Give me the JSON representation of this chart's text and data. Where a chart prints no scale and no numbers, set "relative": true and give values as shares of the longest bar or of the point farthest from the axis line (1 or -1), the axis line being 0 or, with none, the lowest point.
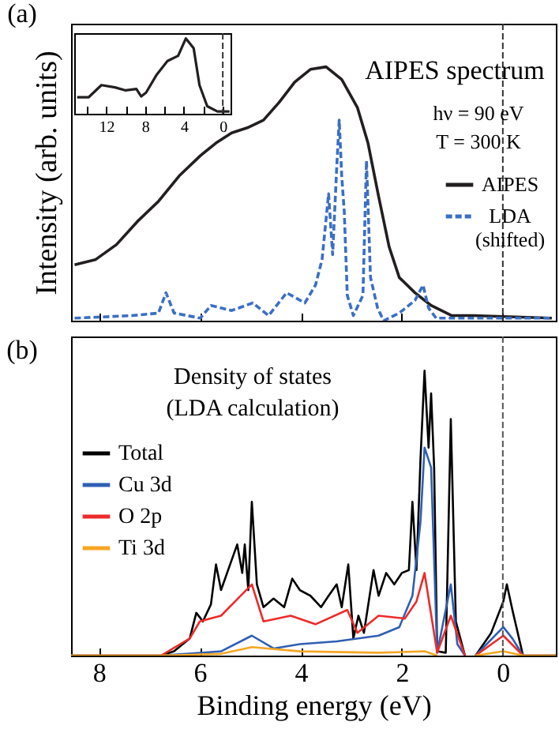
{
  "chart_data": [
    {
      "type": "line",
      "relative": true,
      "ylabel": "Intensity (arb. units)",
      "xlim": [
        8.55,
        -1.05
      ],
      "xticks": [
        8,
        6,
        4,
        2,
        0
      ],
      "tick_labels": false,
      "legend": "right",
      "annotations": [
        "(a)",
        "AIPES spectrum",
        "hν = 90 eV",
        "T = 300 K"
      ],
      "ref_lines": [
        {
          "axis": "x",
          "value": 0,
          "color": "#333333",
          "line_style": "dashed"
        }
      ],
      "series": [
        {
          "name": "AIPES",
          "color": "#231f20",
          "x": [
            8.48,
            8.07,
            7.65,
            7.24,
            6.82,
            6.41,
            5.99,
            5.68,
            5.37,
            5.06,
            4.74,
            4.43,
            4.12,
            3.81,
            3.5,
            3.19,
            2.88,
            2.67,
            2.46,
            2.25,
            2.05,
            1.74,
            1.42,
            1.01,
            0.59,
            -0.97
          ],
          "values": [
            0.22,
            0.24,
            0.3,
            0.39,
            0.47,
            0.57,
            0.65,
            0.7,
            0.74,
            0.76,
            0.79,
            0.86,
            0.94,
            0.99,
            1.0,
            0.95,
            0.84,
            0.7,
            0.49,
            0.29,
            0.17,
            0.11,
            0.06,
            0.02,
            0.02,
            0.01
          ]
        },
        {
          "name": "LDA (shifted)",
          "color": "#3a6fc4",
          "line_style": "dashed",
          "x": [
            8.48,
            7.34,
            6.82,
            6.67,
            6.51,
            5.99,
            5.78,
            5.37,
            4.95,
            4.64,
            4.28,
            3.92,
            3.71,
            3.58,
            3.45,
            3.37,
            3.29,
            3.24,
            3.19,
            3.14,
            3.08,
            2.96,
            2.77,
            2.7,
            2.62,
            2.48,
            2.36,
            2.05,
            1.74,
            1.58,
            1.47,
            1.32,
            -0.71,
            -0.97
          ],
          "values": [
            0.01,
            0.02,
            0.03,
            0.11,
            0.03,
            0.01,
            0.06,
            0.04,
            0.07,
            0.02,
            0.11,
            0.07,
            0.14,
            0.24,
            0.5,
            0.26,
            0.6,
            0.79,
            0.57,
            0.43,
            0.1,
            0.02,
            0.1,
            0.63,
            0.17,
            0.05,
            0.0,
            0.03,
            0.08,
            0.14,
            0.05,
            0.01,
            0.01,
            0.01
          ]
        }
      ]
    },
    {
      "type": "line",
      "relative": true,
      "xlim": [
        15.3,
        -0.8
      ],
      "xticks": [
        {
          "value": 14,
          "label": null
        },
        12,
        {
          "value": 10,
          "label": null
        },
        8,
        {
          "value": 6,
          "label": null
        },
        4,
        {
          "value": 2,
          "label": null
        },
        0
      ],
      "ref_lines": [
        {
          "axis": "x",
          "value": 0,
          "color": "#333333",
          "line_style": "dashed"
        }
      ],
      "series": [
        {
          "color": "#231f20",
          "x": [
            15.0,
            13.8,
            12.5,
            11.1,
            10.0,
            8.9,
            8.4,
            7.9,
            6.8,
            5.7,
            4.6,
            3.8,
            3.0,
            2.4,
            1.6,
            0.55,
            -0.7
          ],
          "values": [
            0.22,
            0.22,
            0.38,
            0.35,
            0.31,
            0.33,
            0.23,
            0.28,
            0.52,
            0.7,
            0.77,
            1.0,
            0.87,
            0.38,
            0.1,
            0.03,
            0.03
          ]
        }
      ]
    },
    {
      "type": "line",
      "relative": true,
      "xlabel": "Binding energy (eV)",
      "xlim": [
        8.55,
        -1.05
      ],
      "xticks": [
        8,
        6,
        4,
        2,
        0
      ],
      "legend": "left",
      "annotations": [
        "(b)",
        "Density of states",
        "(LDA calculation)"
      ],
      "ref_lines": [
        {
          "axis": "x",
          "value": 0,
          "color": "#555555",
          "line_style": "dashed"
        }
      ],
      "series": [
        {
          "name": "Total",
          "color": "#000000",
          "x": [
            8.55,
            6.77,
            6.51,
            6.2,
            6.07,
            5.94,
            5.78,
            5.68,
            5.58,
            5.42,
            5.26,
            5.16,
            5.11,
            5.04,
            4.97,
            4.87,
            4.74,
            4.54,
            4.33,
            4.17,
            4.02,
            3.81,
            3.6,
            3.45,
            3.29,
            3.19,
            3.06,
            2.96,
            2.86,
            2.75,
            2.56,
            2.46,
            2.31,
            2.15,
            2.0,
            1.86,
            1.79,
            1.71,
            1.63,
            1.55,
            1.47,
            1.42,
            1.36,
            1.3,
            1.13,
            1.03,
            0.93,
            0.75,
            0.65,
            0.54,
            0.23,
            -0.01,
            -0.08,
            -0.19,
            -0.4,
            -1.05
          ],
          "values": [
            0,
            0,
            0.015,
            0.06,
            0.15,
            0.12,
            0.18,
            0.32,
            0.23,
            0.31,
            0.39,
            0.29,
            0.39,
            0.23,
            0.54,
            0.25,
            0.17,
            0.2,
            0.17,
            0.27,
            0.23,
            0.21,
            0.17,
            0.21,
            0.25,
            0.17,
            0.32,
            0.06,
            0.14,
            0.08,
            0.3,
            0.21,
            0.29,
            0.25,
            0.29,
            0.3,
            0.54,
            0.3,
            0.69,
            1.0,
            0.73,
            0.92,
            0.66,
            0.015,
            0.01,
            0.83,
            0.12,
            0,
            null,
            0,
            0.08,
            0.19,
            0.25,
            0.16,
            0,
            0
          ]
        },
        {
          "name": "Cu 3d",
          "color": "#2f5fb3",
          "x": [
            8.55,
            6.77,
            5.58,
            4.97,
            4.54,
            4.02,
            3.29,
            2.46,
            2.05,
            1.79,
            1.63,
            1.55,
            1.42,
            1.3,
            1.03,
            0.9,
            0.75,
            0.65,
            0.54,
            -0.01,
            -0.19,
            -0.4,
            -1.05
          ],
          "values": [
            0,
            0,
            0.015,
            0.07,
            0.025,
            0.04,
            0.05,
            0.07,
            0.1,
            0.21,
            0.47,
            0.73,
            0.66,
            0.01,
            0.25,
            0.04,
            0,
            null,
            0,
            0.1,
            0.06,
            0,
            0
          ]
        },
        {
          "name": "O 2p",
          "color": "#ee2a2a",
          "x": [
            8.55,
            6.77,
            6.2,
            6.0,
            5.58,
            4.97,
            4.74,
            4.2,
            3.71,
            3.08,
            2.88,
            2.46,
            1.94,
            1.71,
            1.55,
            1.3,
            1.03,
            0.75,
            0.65,
            0.54,
            -0.01,
            -0.4,
            -1.05
          ],
          "values": [
            0,
            0,
            0.06,
            0.12,
            0.14,
            0.25,
            0.12,
            0.14,
            0.11,
            0.16,
            0.08,
            0.14,
            0.13,
            0.19,
            0.29,
            0.01,
            0.14,
            0,
            null,
            0,
            0.07,
            0,
            0
          ]
        },
        {
          "name": "Ti 3d",
          "color": "#f5a623",
          "x": [
            8.55,
            6.77,
            5.58,
            4.97,
            4.02,
            2.46,
            1.55,
            1.3,
            0.65,
            0.54,
            -0.01,
            -0.4,
            -1.05
          ],
          "values": [
            0,
            0,
            0.006,
            0.03,
            0.015,
            0.01,
            0.015,
            0,
            null,
            0,
            0.015,
            0,
            0
          ]
        }
      ]
    }
  ]
}
